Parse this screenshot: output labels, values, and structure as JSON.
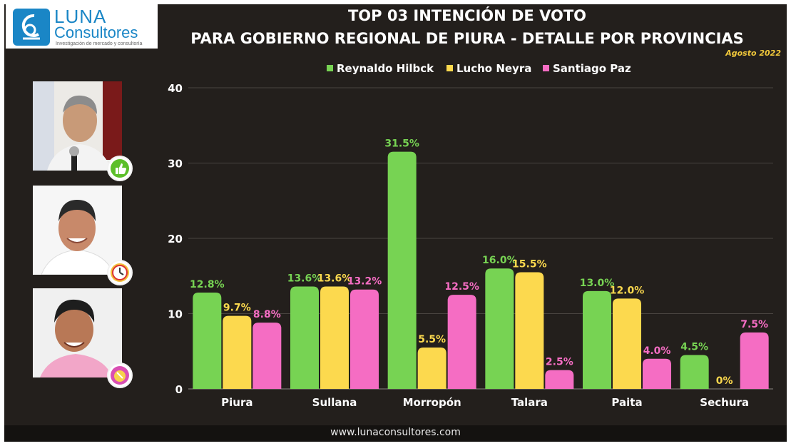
{
  "logo": {
    "name": "LUNA",
    "sub": "Consultores",
    "tagline": "Investigación de mercado y consultoría"
  },
  "header": {
    "title_line1": "TOP 03 INTENCIÓN DE VOTO",
    "title_line2": "PARA GOBIERNO REGIONAL DE PIURA - DETALLE POR PROVINCIAS",
    "date": "Agosto 2022"
  },
  "footer": {
    "url": "www.lunaconsultores.com"
  },
  "candidates": [
    {
      "icon": "thumbs-up-icon"
    },
    {
      "icon": "clock-icon"
    },
    {
      "icon": "brush-icon"
    }
  ],
  "colors": {
    "green": "#77d353",
    "yellow": "#fcd94e",
    "pink": "#f56dc3",
    "background": "#231f1c"
  },
  "chart_data": {
    "type": "bar",
    "categories": [
      "Piura",
      "Sullana",
      "Morropón",
      "Talara",
      "Paita",
      "Sechura"
    ],
    "series": [
      {
        "name": "Reynaldo Hilbck",
        "color": "#77d353",
        "values": [
          12.8,
          13.6,
          31.5,
          16.0,
          13.0,
          4.5
        ],
        "labels": [
          "12.8%",
          "13.6%",
          "31.5%",
          "16.0%",
          "13.0%",
          "4.5%"
        ]
      },
      {
        "name": "Lucho Neyra",
        "color": "#fcd94e",
        "values": [
          9.7,
          13.6,
          5.5,
          15.5,
          12.0,
          0
        ],
        "labels": [
          "9.7%",
          "13.6%",
          "5.5%",
          "15.5%",
          "12.0%",
          "0%"
        ]
      },
      {
        "name": "Santiago Paz",
        "color": "#f56dc3",
        "values": [
          8.8,
          13.2,
          12.5,
          2.5,
          4.0,
          7.5
        ],
        "labels": [
          "8.8%",
          "13.2%",
          "12.5%",
          "2.5%",
          "4.0%",
          "7.5%"
        ]
      }
    ],
    "ylim": [
      0,
      40
    ],
    "yticks": [
      0,
      10,
      20,
      30,
      40
    ],
    "grid": true,
    "legend": "top-center"
  }
}
